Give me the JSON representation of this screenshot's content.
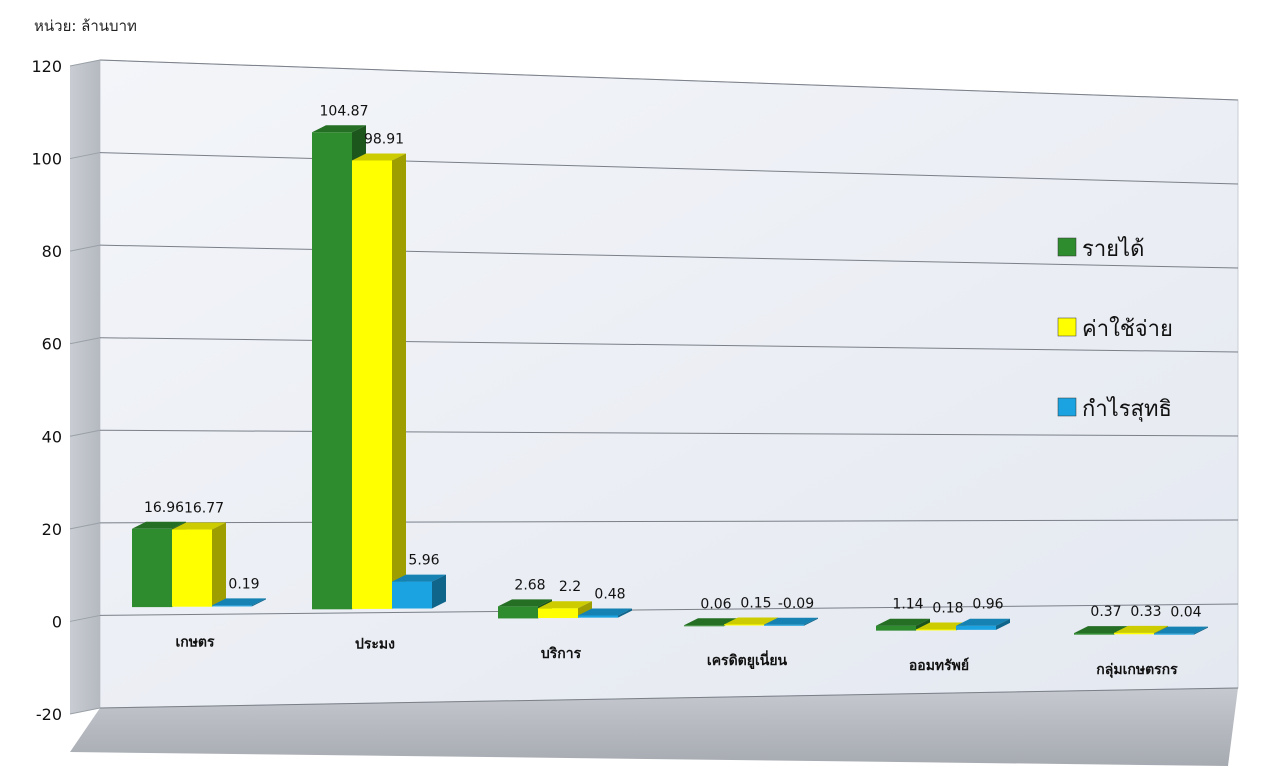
{
  "unit_label": "หน่วย: ล้านบาท",
  "chart_data": {
    "type": "bar",
    "title": "",
    "ylabel": "หน่วย: ล้านบาท",
    "ylim": [
      -20,
      120
    ],
    "yticks": [
      -20,
      0,
      20,
      40,
      60,
      80,
      100,
      120
    ],
    "grid": true,
    "legend_position": "right",
    "categories": [
      "เกษตร",
      "ประมง",
      "บริการ",
      "เครดิตยูเนี่ยน",
      "ออมทรัพย์",
      "กลุ่มเกษตรกร"
    ],
    "series": [
      {
        "name": "รายได้",
        "color": "#2e8b2e",
        "values": [
          16.96,
          104.87,
          2.68,
          0.06,
          1.14,
          0.37
        ],
        "labels": [
          "16.96",
          "104.87",
          "2.68",
          "0.06",
          "1.14",
          "0.37"
        ]
      },
      {
        "name": "ค่าใช้จ่าย",
        "color": "#ffff00",
        "values": [
          16.77,
          98.91,
          2.2,
          0.15,
          0.18,
          0.33
        ],
        "labels": [
          "16.77",
          "98.91",
          "2.2",
          "0.15",
          "0.18",
          "0.33"
        ]
      },
      {
        "name": "กำไรสุทธิ",
        "color": "#1aa3e0",
        "values": [
          0.19,
          5.96,
          0.48,
          -0.09,
          0.96,
          0.04
        ],
        "labels": [
          "0.19",
          "5.96",
          "0.48",
          "-0.09",
          "0.96",
          "0.04"
        ]
      }
    ]
  }
}
